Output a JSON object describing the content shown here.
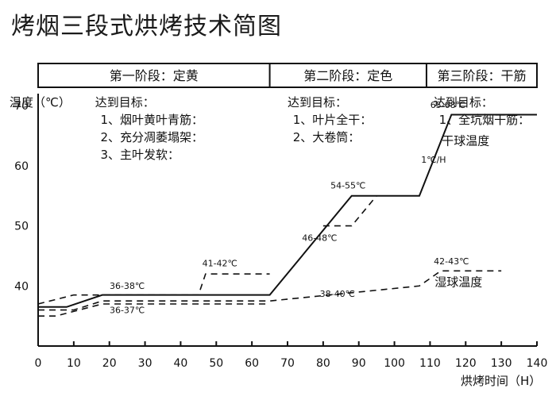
{
  "title": "烤烟三段式烘烤技术简图",
  "stages": [
    {
      "label": "第一阶段：定黄",
      "range": [
        0,
        65
      ]
    },
    {
      "label": "第二阶段：定色",
      "range": [
        65,
        109
      ]
    },
    {
      "label": "第三阶段：干筋",
      "range": [
        109,
        140
      ]
    }
  ],
  "goals": [
    {
      "heading": "达到目标：",
      "items": [
        "1、烟叶黄叶青筋：",
        "2、充分凋萎塌架：",
        "3、主叶发软："
      ]
    },
    {
      "heading": "达到目标：",
      "items": [
        "1、叶片全干：",
        "2、大卷筒："
      ]
    },
    {
      "heading": "达到目标：",
      "items": [
        "1、全坑烟干筋："
      ]
    }
  ],
  "chart_data": {
    "type": "line",
    "title": "",
    "xlabel": "烘烤时间（H）",
    "ylabel": "温度（℃）",
    "xlim": [
      0,
      140
    ],
    "ylim": [
      30,
      72
    ],
    "xticks": [
      0,
      10,
      20,
      30,
      40,
      50,
      60,
      70,
      80,
      90,
      100,
      110,
      120,
      130,
      140
    ],
    "yticks": [
      40,
      50,
      60,
      70
    ],
    "series": [
      {
        "name": "干球温度",
        "style": "solid",
        "x": [
          0,
          8,
          18,
          65,
          88,
          107,
          116,
          140
        ],
        "y": [
          36.5,
          36.5,
          38.5,
          38.5,
          55,
          55,
          68.5,
          68.5
        ]
      },
      {
        "name": "湿球温度",
        "style": "dashed",
        "x": [
          0,
          10,
          18,
          65,
          107,
          113,
          130
        ],
        "y": [
          36,
          36,
          37.5,
          37.5,
          40,
          42.5,
          42.5
        ]
      },
      {
        "name": "",
        "style": "dashed",
        "x": [
          0,
          10,
          45,
          47,
          65
        ],
        "y": [
          37,
          38.5,
          38.5,
          42,
          42
        ]
      },
      {
        "name": "",
        "style": "dashed",
        "x": [
          0,
          5,
          18,
          35,
          65
        ],
        "y": [
          35,
          35,
          37,
          37,
          37
        ]
      },
      {
        "name": "",
        "style": "dashed",
        "x": [
          80,
          88,
          95
        ],
        "y": [
          50,
          50,
          55
        ]
      }
    ],
    "annotations": [
      {
        "text": "36-38℃",
        "x": 25,
        "y": 39.5
      },
      {
        "text": "36-37℃",
        "x": 25,
        "y": 35.5
      },
      {
        "text": "41-42℃",
        "x": 51,
        "y": 43.3
      },
      {
        "text": "54-55℃",
        "x": 87,
        "y": 56.2
      },
      {
        "text": "46-48℃",
        "x": 79,
        "y": 47.5
      },
      {
        "text": "38-40℃",
        "x": 84,
        "y": 38.2
      },
      {
        "text": "65-68℃",
        "x": 115,
        "y": 69.6
      },
      {
        "text": "1℃/H",
        "x": 111,
        "y": 60.5
      },
      {
        "text": "42-43℃",
        "x": 116,
        "y": 43.6
      }
    ],
    "legend_labels": [
      {
        "text": "干球温度",
        "x": 120,
        "y": 63.5
      },
      {
        "text": "湿球温度",
        "x": 118,
        "y": 40
      }
    ]
  }
}
